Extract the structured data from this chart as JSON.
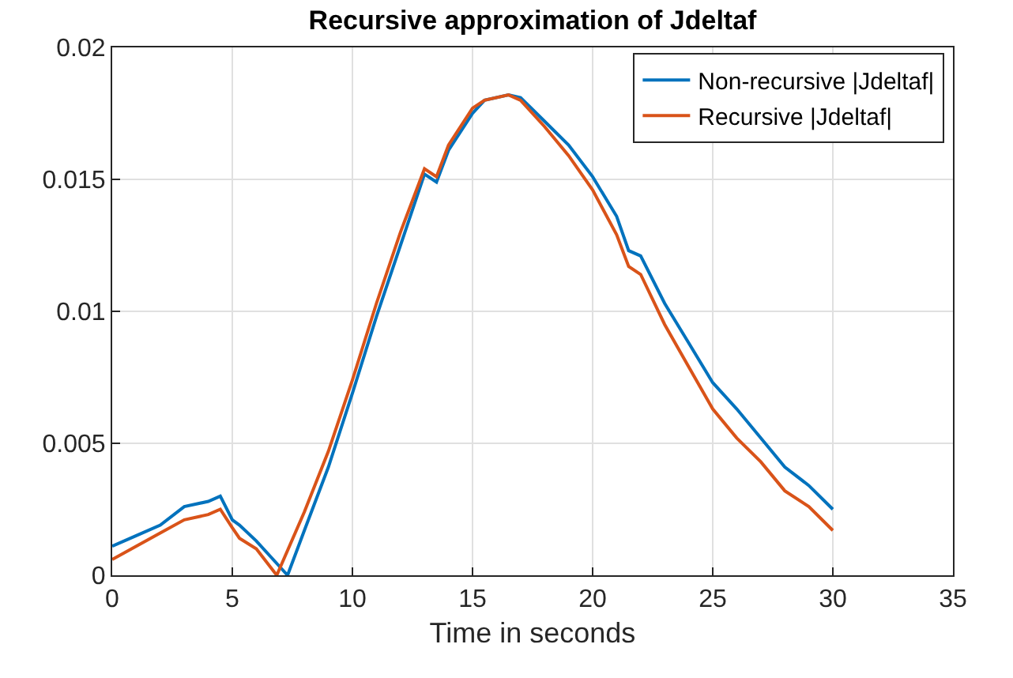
{
  "chart_data": {
    "type": "line",
    "title": "Recursive approximation of Jdeltaf",
    "xlabel": "Time in seconds",
    "xlim": [
      0,
      35
    ],
    "xticks": [
      0,
      5,
      10,
      15,
      20,
      25,
      30,
      35
    ],
    "ylim": [
      0,
      0.02
    ],
    "yticks": [
      0,
      0.005,
      0.01,
      0.015,
      0.02
    ],
    "grid": true,
    "legend": "top right",
    "series": [
      {
        "name": "Non-recursive |Jdeltaf|",
        "color": "#0072bd",
        "x": [
          0,
          1,
          2,
          3,
          4,
          4.5,
          5,
          5.3,
          6,
          7,
          7.3,
          8,
          9,
          10,
          11,
          12,
          13,
          13.5,
          14,
          15,
          15.5,
          16.5,
          17,
          18,
          19,
          20,
          21,
          21.5,
          22,
          23,
          24,
          25,
          26,
          27,
          28,
          29,
          30
        ],
        "values": [
          0.0011,
          0.0015,
          0.0019,
          0.0026,
          0.0028,
          0.003,
          0.0021,
          0.0019,
          0.0013,
          0.0003,
          0,
          0.0017,
          0.0041,
          0.0069,
          0.0098,
          0.0125,
          0.0152,
          0.0149,
          0.0161,
          0.0175,
          0.018,
          0.0182,
          0.0181,
          0.0172,
          0.0163,
          0.0151,
          0.0136,
          0.0123,
          0.0121,
          0.0103,
          0.0088,
          0.0073,
          0.0063,
          0.0052,
          0.0041,
          0.0034,
          0.0025
        ]
      },
      {
        "name": "Recursive |Jdeltaf|",
        "color": "#d95319",
        "x": [
          0,
          1,
          2,
          3,
          4,
          4.5,
          5,
          5.3,
          6,
          6.85,
          8,
          9,
          10,
          11,
          12,
          13,
          13.5,
          14,
          15,
          15.5,
          16.5,
          17,
          18,
          19,
          20,
          21,
          21.5,
          22,
          23,
          24,
          25,
          26,
          27,
          28,
          29,
          30
        ],
        "values": [
          0.0006,
          0.0011,
          0.0016,
          0.0021,
          0.0023,
          0.0025,
          0.0018,
          0.0014,
          0.001,
          0,
          0.0024,
          0.0047,
          0.0074,
          0.0103,
          0.013,
          0.0154,
          0.0151,
          0.0163,
          0.0177,
          0.018,
          0.0182,
          0.018,
          0.017,
          0.0159,
          0.0146,
          0.0129,
          0.0117,
          0.0114,
          0.0095,
          0.0079,
          0.0063,
          0.0052,
          0.0043,
          0.0032,
          0.0026,
          0.0017
        ]
      }
    ]
  }
}
